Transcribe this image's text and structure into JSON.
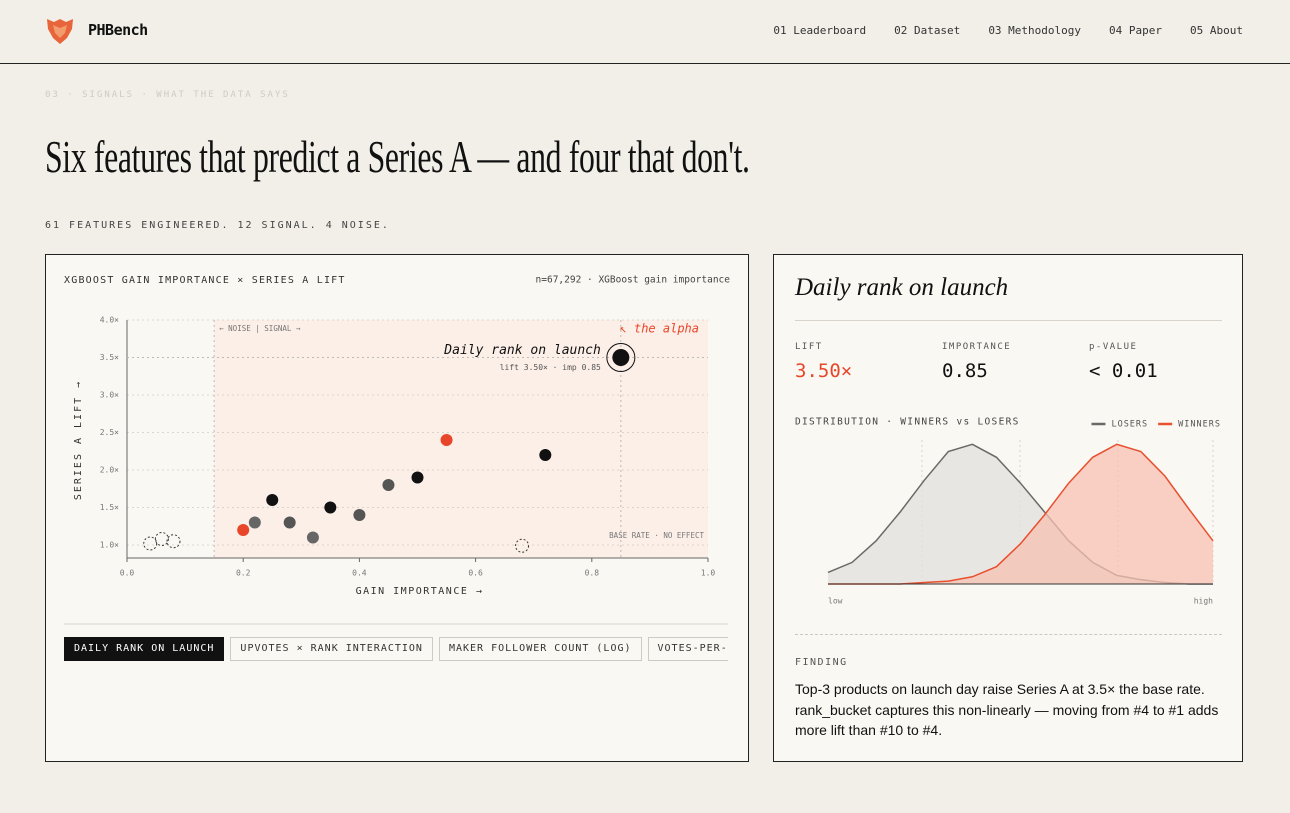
{
  "header": {
    "brand": "PHBench",
    "nav": [
      "01 Leaderboard",
      "02 Dataset",
      "03 Methodology",
      "04 Paper",
      "05 About"
    ]
  },
  "section": {
    "eyebrow": "03 · SIGNALS · WHAT THE DATA SAYS",
    "title": "Six features that predict a Series A — and four that don't.",
    "subtitle": "61 FEATURES ENGINEERED. 12 SIGNAL. 4 NOISE."
  },
  "chart_data": [
    {
      "type": "scatter",
      "title": "XGBOOST GAIN IMPORTANCE × SERIES A LIFT",
      "subtitle": "n=67,292 · XGBoost gain importance",
      "x_label": "GAIN IMPORTANCE →",
      "y_label": "SERIES A LIFT →",
      "xlim": [
        0,
        1
      ],
      "ylim": [
        0.8,
        4
      ],
      "xticks": [
        {
          "value": 0,
          "label": "0.0"
        },
        {
          "value": 0.2,
          "label": "0.2"
        },
        {
          "value": 0.4,
          "label": "0.4"
        },
        {
          "value": 0.6,
          "label": "0.6"
        },
        {
          "value": 0.8,
          "label": "0.8"
        },
        {
          "value": 1,
          "label": "1.0"
        }
      ],
      "yticks": [
        {
          "value": 1,
          "label": "1.0×"
        },
        {
          "value": 1.5,
          "label": "1.5×"
        },
        {
          "value": 2,
          "label": "2.0×"
        },
        {
          "value": 2.5,
          "label": "2.5×"
        },
        {
          "value": 3,
          "label": "3.0×"
        },
        {
          "value": 3.5,
          "label": "3.5×"
        },
        {
          "value": 4,
          "label": "4.0×"
        }
      ],
      "grid": true,
      "threshold": 0.15,
      "region_color": "#fcefe8",
      "series": [
        {
          "x": [
            0.2,
            0.22,
            0.25,
            0.28,
            0.32,
            0.35,
            0.4,
            0.45,
            0.5,
            0.55,
            0.72
          ],
          "values": [
            1.2,
            1.3,
            1.6,
            1.3,
            1.1,
            1.5,
            1.4,
            1.8,
            1.9,
            2.4,
            2.2
          ],
          "colors": [
            "#e8462a",
            "#666666",
            "#111111",
            "#555555",
            "#666666",
            "#111111",
            "#555555",
            "#555555",
            "#111111",
            "#e8462a",
            "#111111"
          ],
          "style": "solid"
        },
        {
          "x": [
            0.85
          ],
          "values": [
            3.5
          ],
          "colors": [
            "#111111"
          ],
          "style": "highlight"
        },
        {
          "x": [
            0.04,
            0.06,
            0.08,
            0.68
          ],
          "values": [
            1.02,
            1.08,
            1.05,
            0.99
          ],
          "colors": [
            "#333333",
            "#333333",
            "#333333",
            "#333333"
          ],
          "style": "dashed"
        }
      ],
      "annotations": {
        "divider": "← NOISE | SIGNAL →",
        "alpha": "↖ the alpha",
        "highlight_name": "Daily rank on launch",
        "highlight_detail": "lift 3.50× · imp 0.85",
        "base_rate": "BASE RATE · NO EFFECT"
      }
    },
    {
      "type": "area",
      "title": "DISTRIBUTION · WINNERS vs LOSERS",
      "categories": [
        "low",
        null,
        null,
        null,
        null,
        null,
        null,
        null,
        null,
        null,
        null,
        null,
        null,
        null,
        null,
        null,
        "high"
      ],
      "ylim": [
        0,
        100
      ],
      "series": [
        {
          "name": "LOSERS",
          "color": "#6b6966",
          "fill": "#e2e0dc",
          "values": [
            8,
            15,
            30,
            50,
            72,
            92,
            97,
            88,
            70,
            50,
            30,
            15,
            6,
            3,
            1,
            0,
            0
          ]
        },
        {
          "name": "WINNERS",
          "color": "#e8502f",
          "fill": "#f7c2b2",
          "values": [
            0,
            0,
            0,
            0,
            1,
            2,
            5,
            12,
            28,
            48,
            70,
            88,
            97,
            92,
            75,
            52,
            30
          ]
        }
      ]
    }
  ],
  "tabs": [
    "DAILY RANK ON LAUNCH",
    "UPVOTES × RANK INTERACTION",
    "MAKER FOLLOWER COUNT (LOG)",
    "VOTES-PER-COMMENT RATIO"
  ],
  "detail": {
    "title": "Daily rank on launch",
    "stats": [
      {
        "label": "LIFT",
        "value": "3.50×"
      },
      {
        "label": "IMPORTANCE",
        "value": "0.85"
      },
      {
        "label": "p-VALUE",
        "value": "< 0.01"
      }
    ],
    "finding_label": "FINDING",
    "finding": "Top-3 products on launch day raise Series A at 3.5× the base rate. rank_bucket captures this non-linearly — moving from #4 to #1 adds more lift than #10 to #4."
  }
}
